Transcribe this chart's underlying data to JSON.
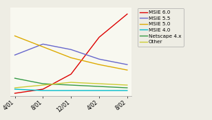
{
  "x_labels": [
    "4/01",
    "8/01",
    "12/01",
    "4/02",
    "8/02"
  ],
  "x_values": [
    0,
    1,
    2,
    3,
    4
  ],
  "series": {
    "MSIE 6.0": [
      0.02,
      0.05,
      0.16,
      0.43,
      0.6
    ],
    "MSIE 5.5": [
      0.3,
      0.38,
      0.34,
      0.27,
      0.23
    ],
    "MSIE 5.0": [
      0.44,
      0.36,
      0.28,
      0.23,
      0.19
    ],
    "MSIE 4.0": [
      0.05,
      0.04,
      0.04,
      0.04,
      0.04
    ],
    "Netscape 4.x": [
      0.13,
      0.09,
      0.08,
      0.07,
      0.06
    ],
    "Other": [
      0.06,
      0.08,
      0.1,
      0.09,
      0.08
    ]
  },
  "colors": {
    "MSIE 6.0": "#dd0000",
    "MSIE 5.5": "#6666cc",
    "MSIE 5.0": "#ddaa00",
    "MSIE 4.0": "#00bbcc",
    "Netscape 4.x": "#339944",
    "Other": "#cccc33"
  },
  "background_color": "#eeede4",
  "plot_bg": "#f8f8f0",
  "ylim": [
    0,
    0.65
  ],
  "xlim": [
    -0.15,
    4.15
  ]
}
